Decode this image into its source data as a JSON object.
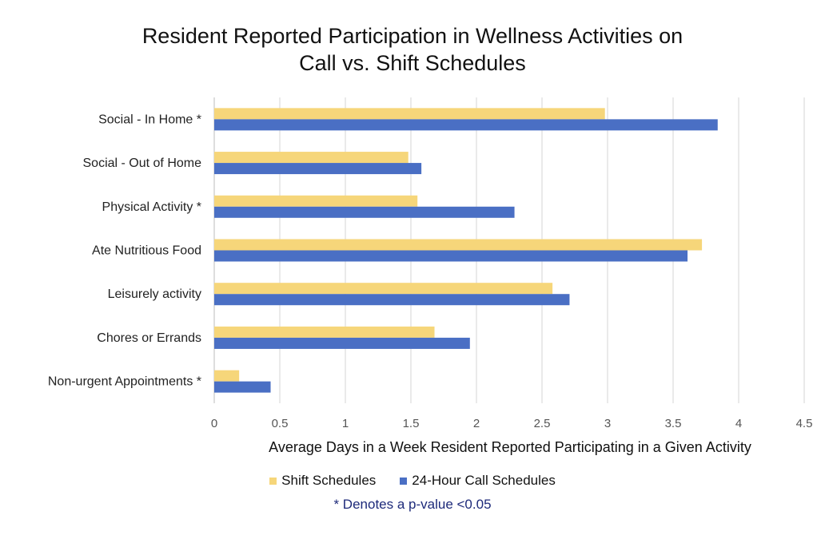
{
  "chart_data": {
    "type": "bar",
    "orientation": "horizontal",
    "title_line1": "Resident Reported Participation in Wellness Activities on",
    "title_line2": "Call vs. Shift Schedules",
    "xlabel": "Average Days in a Week Resident Reported Participating in a Given Activity",
    "ylabel": "",
    "xlim": [
      0,
      4.5
    ],
    "x_ticks": [
      "0",
      "0.5",
      "1",
      "1.5",
      "2",
      "2.5",
      "3",
      "3.5",
      "4",
      "4.5"
    ],
    "grid": true,
    "categories": [
      "Social - In Home *",
      "Social - Out of Home",
      "Physical Activity *",
      "Ate Nutritious Food",
      "Leisurely activity",
      "Chores or Errands",
      "Non-urgent Appointments *"
    ],
    "series": [
      {
        "name": "Shift Schedules",
        "color": "#f6d67a",
        "values": [
          2.98,
          1.48,
          1.55,
          3.72,
          2.58,
          1.68,
          0.19
        ]
      },
      {
        "name": "24-Hour Call Schedules",
        "color": "#4a6fc4",
        "values": [
          3.84,
          1.58,
          2.29,
          3.61,
          2.71,
          1.95,
          0.43
        ]
      }
    ],
    "legend_position": "bottom",
    "footnote": "* Denotes a p-value <0.05"
  }
}
